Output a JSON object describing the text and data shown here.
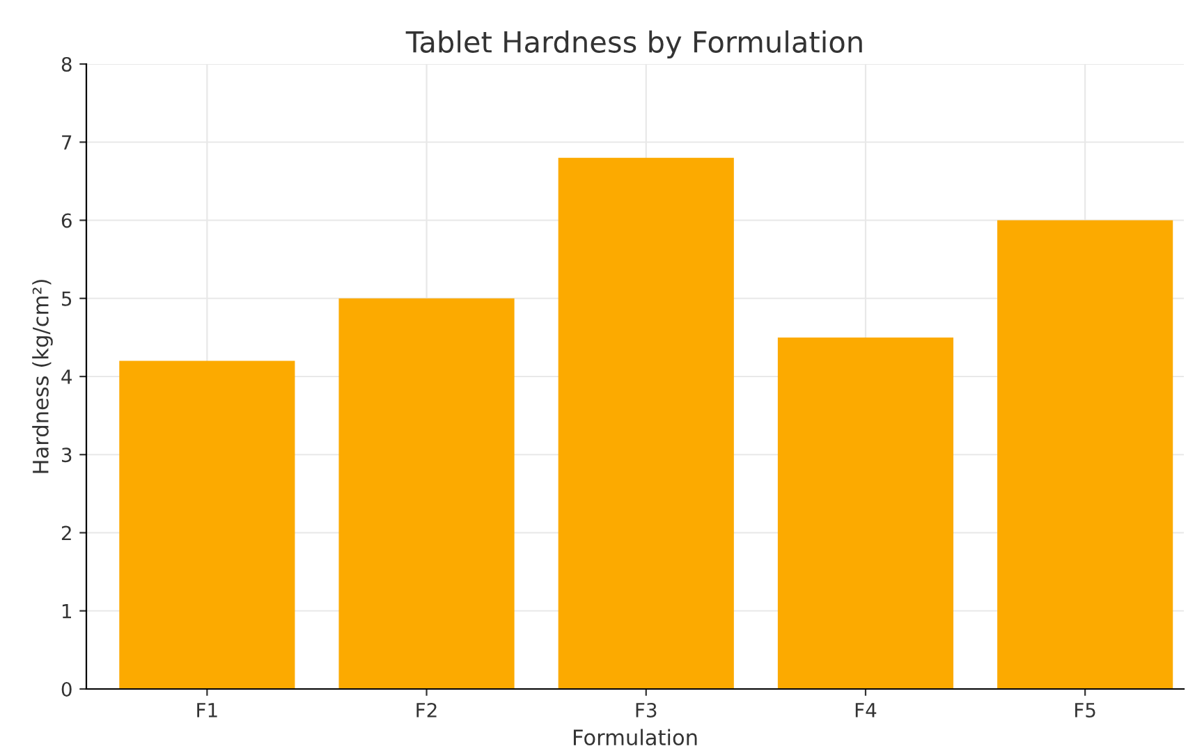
{
  "chart_data": {
    "type": "bar",
    "title": "Tablet Hardness by Formulation",
    "xlabel": "Formulation",
    "ylabel": "Hardness (kg/cm²)",
    "categories": [
      "F1",
      "F2",
      "F3",
      "F4",
      "F5"
    ],
    "values": [
      4.2,
      5.0,
      6.8,
      4.5,
      6.0
    ],
    "color": "#fcaa00",
    "ylim": [
      0,
      8
    ],
    "yticks": [
      0,
      1,
      2,
      3,
      4,
      5,
      6,
      7,
      8
    ],
    "grid": true
  }
}
